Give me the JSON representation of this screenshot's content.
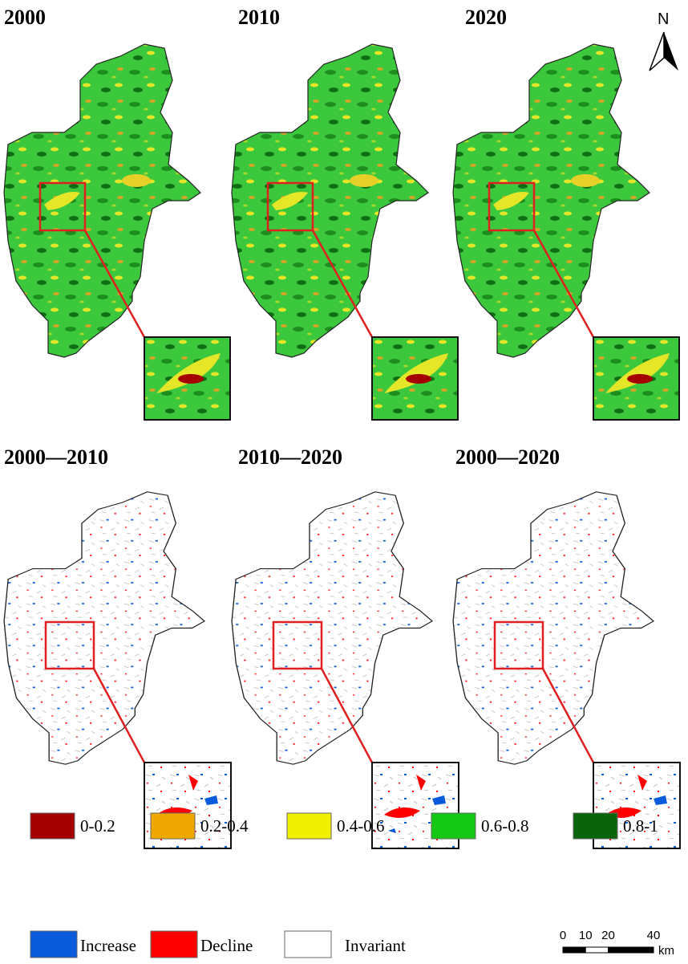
{
  "titles": [
    "2000",
    "2010",
    "2020",
    "2000—2010",
    "2010—2020",
    "2000—2020"
  ],
  "north": "N",
  "legend": {
    "classes": [
      {
        "label": "0-0.2",
        "color": "#a50000"
      },
      {
        "label": "0.2-0.4",
        "color": "#f0a800"
      },
      {
        "label": "0.4-0.6",
        "color": "#f0f000"
      },
      {
        "label": "0.6-0.8",
        "color": "#14c814"
      },
      {
        "label": "0.8-1",
        "color": "#0a640a"
      }
    ],
    "change": [
      {
        "label": "Increase",
        "color": "#0a5adc"
      },
      {
        "label": "Decline",
        "color": "#ff0000"
      },
      {
        "label": "Invariant",
        "color": "#ffffff"
      }
    ]
  },
  "scale_bar": {
    "ticks": [
      0,
      10,
      20,
      40
    ],
    "unit": "km"
  }
}
